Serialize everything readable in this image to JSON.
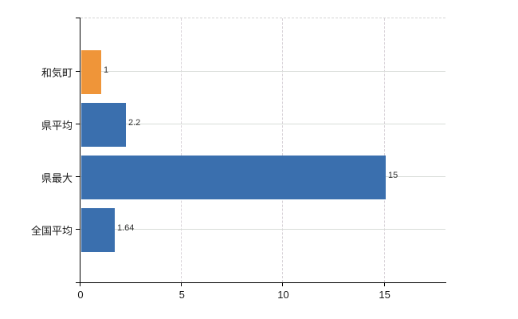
{
  "chart_data": {
    "type": "bar",
    "orientation": "horizontal",
    "title": "",
    "categories": [
      "和気町",
      "県平均",
      "県最大",
      "全国平均"
    ],
    "values": [
      1,
      2.2,
      15,
      1.64
    ],
    "value_labels": [
      "1",
      "2.2",
      "15",
      "1.64"
    ],
    "bar_colors": [
      "#ef9539",
      "#3a6fae",
      "#3a6fae",
      "#3a6fae"
    ],
    "x_ticks": [
      0,
      5,
      10,
      15
    ],
    "x_tick_labels": [
      "0",
      "5",
      "10",
      "15"
    ],
    "xlim": [
      0,
      18
    ],
    "grid": true,
    "legend": false,
    "colors": {
      "highlight": "#ef9539",
      "default": "#3a6fae",
      "axis": "#000000",
      "gridline": "#d9d9d9",
      "text": "#1a1a1a"
    }
  }
}
